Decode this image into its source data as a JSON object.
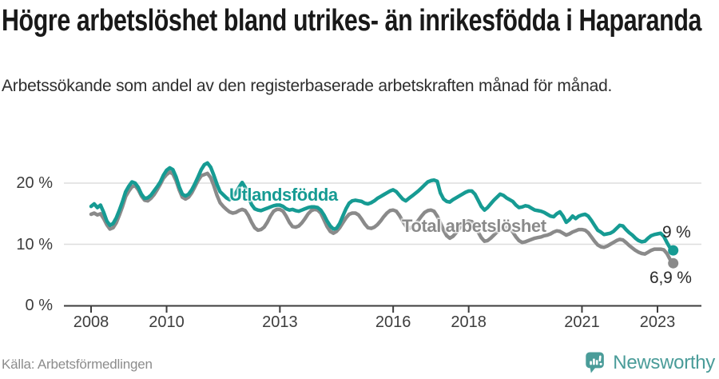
{
  "header": {
    "title": "Högre arbetslöshet bland utrikes- än inrikesfödda i Haparanda",
    "subtitle": "Arbetssökande som andel av den registerbaserade arbetskraften månad för månad."
  },
  "footer": {
    "source": "Källa: Arbetsförmedlingen",
    "brand": "Newsworthy"
  },
  "colors": {
    "accent_teal": "#169b93",
    "secondary_gray": "#8a8a8a",
    "axis": "#3d3d3d",
    "grid": "#dddddd",
    "brand_teal": "#4a9c99",
    "title_text": "#191919"
  },
  "chart_data": {
    "type": "line",
    "title": "Högre arbetslöshet bland utrikes- än inrikesfödda i Haparanda",
    "subtitle": "Arbetssökande som andel av den registerbaserade arbetskraften månad för månad.",
    "unit": "%",
    "frequency": "monthly",
    "x_start": "2008-01",
    "x_end": "2023-06",
    "ylim": [
      0,
      24
    ],
    "grid": "horizontal",
    "legend_position": "inline-labels",
    "y_ticks": [
      {
        "value": 0,
        "label": "0 %"
      },
      {
        "value": 10,
        "label": "10 %"
      },
      {
        "value": 20,
        "label": "20 %"
      }
    ],
    "x_ticks": [
      {
        "month_index": 0,
        "label": "2008"
      },
      {
        "month_index": 24,
        "label": "2010"
      },
      {
        "month_index": 60,
        "label": "2013"
      },
      {
        "month_index": 96,
        "label": "2016"
      },
      {
        "month_index": 120,
        "label": "2018"
      },
      {
        "month_index": 156,
        "label": "2021"
      },
      {
        "month_index": 180,
        "label": "2023"
      }
    ],
    "series": [
      {
        "name": "Total arbetslöshet",
        "color": "#8a8a8a",
        "end_label": "6,9 %",
        "end_value": 6.9,
        "values": [
          14.9,
          15.1,
          14.8,
          15.0,
          14.2,
          13.2,
          12.5,
          12.7,
          13.5,
          14.8,
          16.2,
          17.8,
          18.7,
          19.4,
          19.6,
          18.9,
          17.9,
          17.2,
          17.1,
          17.5,
          18.1,
          18.9,
          19.8,
          20.8,
          21.4,
          21.8,
          21.5,
          20.4,
          18.9,
          17.7,
          17.4,
          17.7,
          18.4,
          19.4,
          20.4,
          21.2,
          21.4,
          21.6,
          20.9,
          19.6,
          18.0,
          16.8,
          16.2,
          15.7,
          15.3,
          15.1,
          15.2,
          15.5,
          15.7,
          15.5,
          14.7,
          13.6,
          12.7,
          12.3,
          12.4,
          12.8,
          13.6,
          14.6,
          15.4,
          15.7,
          15.7,
          15.4,
          14.6,
          13.6,
          12.9,
          12.8,
          13.0,
          13.5,
          14.2,
          15.0,
          15.5,
          15.7,
          15.6,
          15.1,
          14.0,
          12.9,
          12.1,
          11.8,
          12.1,
          12.7,
          13.5,
          14.3,
          14.9,
          15.1,
          15.1,
          14.8,
          14.1,
          13.3,
          12.7,
          12.6,
          12.8,
          13.2,
          13.8,
          14.5,
          15.1,
          15.5,
          15.6,
          15.4,
          14.7,
          13.8,
          13.0,
          12.6,
          12.8,
          13.3,
          13.9,
          14.6,
          15.2,
          15.5,
          15.6,
          15.4,
          14.6,
          13.5,
          12.3,
          11.4,
          11.0,
          11.3,
          11.9,
          12.6,
          13.2,
          13.6,
          13.8,
          13.7,
          13.0,
          12.0,
          11.1,
          10.5,
          10.6,
          11.0,
          11.5,
          12.0,
          12.4,
          12.7,
          12.8,
          12.6,
          12.0,
          11.2,
          10.6,
          10.3,
          10.4,
          10.6,
          10.8,
          11.0,
          11.1,
          11.2,
          11.4,
          11.5,
          11.7,
          12.0,
          12.2,
          12.1,
          11.8,
          11.5,
          11.7,
          12.0,
          12.2,
          12.4,
          12.4,
          12.3,
          11.9,
          11.2,
          10.5,
          9.9,
          9.6,
          9.5,
          9.7,
          10.0,
          10.3,
          10.6,
          10.8,
          10.7,
          10.3,
          9.8,
          9.4,
          9.0,
          8.7,
          8.5,
          8.4,
          8.7,
          9.0,
          9.2,
          9.2,
          9.2,
          9.1,
          8.5,
          7.5,
          6.9
        ]
      },
      {
        "name": "Utlandsfödda",
        "color": "#169b93",
        "end_label": "9 %",
        "end_value": 9.0,
        "values": [
          16.2,
          16.6,
          16.0,
          16.4,
          15.2,
          13.8,
          13.1,
          13.4,
          14.3,
          15.6,
          17.0,
          18.6,
          19.5,
          20.2,
          20.0,
          19.3,
          18.2,
          17.5,
          17.6,
          18.0,
          18.7,
          19.4,
          20.2,
          21.3,
          22.1,
          22.5,
          22.2,
          21.0,
          19.4,
          18.2,
          17.9,
          18.2,
          18.9,
          19.9,
          21.0,
          22.2,
          23.0,
          23.3,
          22.6,
          21.3,
          19.8,
          18.6,
          18.1,
          17.6,
          17.3,
          17.7,
          18.4,
          19.3,
          20.1,
          19.3,
          17.8,
          16.5,
          15.8,
          15.6,
          15.5,
          15.7,
          15.9,
          16.1,
          16.3,
          16.4,
          16.4,
          16.2,
          15.8,
          15.6,
          15.7,
          15.5,
          15.4,
          15.6,
          15.8,
          16.0,
          16.1,
          16.1,
          16.0,
          15.6,
          14.8,
          13.8,
          13.0,
          12.5,
          12.6,
          13.4,
          14.6,
          15.8,
          16.7,
          17.1,
          17.2,
          17.1,
          17.0,
          16.7,
          16.6,
          16.8,
          17.1,
          17.5,
          17.8,
          18.1,
          18.4,
          18.7,
          18.9,
          18.6,
          18.0,
          17.4,
          17.1,
          17.5,
          17.9,
          18.3,
          18.7,
          19.2,
          19.7,
          20.2,
          20.4,
          20.5,
          20.3,
          18.4,
          17.4,
          17.0,
          16.9,
          17.3,
          17.6,
          17.9,
          18.2,
          18.5,
          18.7,
          18.7,
          18.2,
          17.2,
          16.2,
          15.6,
          16.0,
          16.6,
          17.2,
          17.7,
          18.2,
          18.0,
          17.6,
          17.3,
          17.0,
          16.4,
          16.0,
          16.1,
          16.3,
          16.2,
          15.9,
          15.6,
          15.5,
          15.4,
          15.2,
          14.9,
          14.6,
          14.5,
          15.0,
          15.3,
          14.6,
          13.6,
          14.0,
          14.6,
          14.2,
          14.6,
          14.8,
          14.9,
          14.6,
          13.9,
          13.1,
          12.3,
          12.0,
          11.6,
          11.7,
          11.8,
          12.1,
          12.6,
          13.1,
          13.0,
          12.4,
          11.9,
          11.5,
          11.0,
          10.6,
          10.4,
          10.5,
          11.0,
          11.4,
          11.6,
          11.7,
          11.8,
          11.3,
          10.3,
          9.4,
          9.0
        ]
      }
    ]
  }
}
